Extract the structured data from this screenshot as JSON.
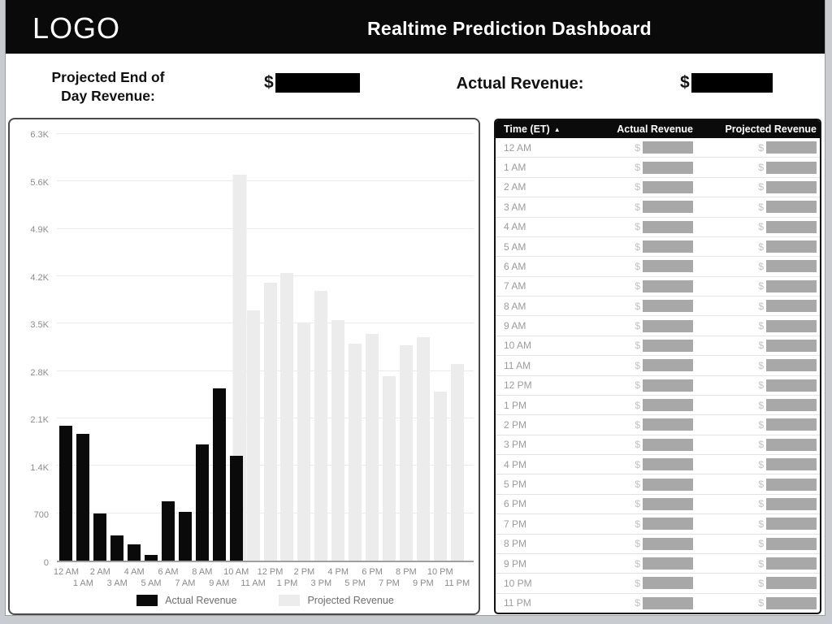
{
  "header": {
    "logo": "LOGO",
    "title": "Realtime Prediction Dashboard"
  },
  "stats": {
    "projected_label_line1": "Projected End of",
    "projected_label_line2": "Day Revenue:",
    "projected_currency": "$",
    "projected_value_redacted": true,
    "actual_label": "Actual Revenue:",
    "actual_currency": "$",
    "actual_value_redacted": true
  },
  "chart_data": {
    "type": "bar",
    "title": "",
    "xlabel": "",
    "ylabel": "",
    "ylim": [
      0,
      6300
    ],
    "grid": true,
    "legend_position": "bottom",
    "x": [
      "12 AM",
      "1 AM",
      "2 AM",
      "3 AM",
      "4 AM",
      "5 AM",
      "6 AM",
      "7 AM",
      "8 AM",
      "9 AM",
      "10 AM",
      "11 AM",
      "12 PM",
      "1 PM",
      "2 PM",
      "3 PM",
      "4 PM",
      "5 PM",
      "6 PM",
      "7 PM",
      "8 PM",
      "9 PM",
      "10 PM",
      "11 PM"
    ],
    "yticks": [
      {
        "v": 0,
        "label": "0"
      },
      {
        "v": 700,
        "label": "700"
      },
      {
        "v": 1400,
        "label": "1.4K"
      },
      {
        "v": 2100,
        "label": "2.1K"
      },
      {
        "v": 2800,
        "label": "2.8K"
      },
      {
        "v": 3500,
        "label": "3.5K"
      },
      {
        "v": 4200,
        "label": "4.2K"
      },
      {
        "v": 4900,
        "label": "4.9K"
      },
      {
        "v": 5600,
        "label": "5.6K"
      },
      {
        "v": 6300,
        "label": "6.3K"
      }
    ],
    "series": [
      {
        "name": "Actual Revenue",
        "color": "#0a0a0a",
        "values": [
          1990,
          1870,
          700,
          370,
          245,
          80,
          880,
          720,
          1720,
          2540,
          1550,
          null,
          null,
          null,
          null,
          null,
          null,
          null,
          null,
          null,
          null,
          null,
          null,
          null
        ]
      },
      {
        "name": "Projected Revenue",
        "color": "#ececec",
        "values": [
          null,
          null,
          null,
          null,
          null,
          null,
          null,
          null,
          null,
          null,
          5700,
          3700,
          4100,
          4250,
          3500,
          3980,
          3550,
          3200,
          3350,
          2730,
          3180,
          3300,
          2500,
          2900
        ]
      }
    ]
  },
  "table": {
    "columns": [
      "Time (ET)",
      "Actual Revenue",
      "Projected Revenue"
    ],
    "sort_icon": "▲",
    "currency": "$",
    "rows": [
      {
        "time": "12 AM",
        "actual_redacted": true,
        "projected_redacted": true
      },
      {
        "time": "1 AM",
        "actual_redacted": true,
        "projected_redacted": true
      },
      {
        "time": "2 AM",
        "actual_redacted": true,
        "projected_redacted": true
      },
      {
        "time": "3 AM",
        "actual_redacted": true,
        "projected_redacted": true
      },
      {
        "time": "4 AM",
        "actual_redacted": true,
        "projected_redacted": true
      },
      {
        "time": "5 AM",
        "actual_redacted": true,
        "projected_redacted": true
      },
      {
        "time": "6 AM",
        "actual_redacted": true,
        "projected_redacted": true
      },
      {
        "time": "7 AM",
        "actual_redacted": true,
        "projected_redacted": true
      },
      {
        "time": "8 AM",
        "actual_redacted": true,
        "projected_redacted": true
      },
      {
        "time": "9 AM",
        "actual_redacted": true,
        "projected_redacted": true
      },
      {
        "time": "10 AM",
        "actual_redacted": true,
        "projected_redacted": true
      },
      {
        "time": "11 AM",
        "actual_redacted": true,
        "projected_redacted": true
      },
      {
        "time": "12 PM",
        "actual_redacted": true,
        "projected_redacted": true
      },
      {
        "time": "1 PM",
        "actual_redacted": true,
        "projected_redacted": true
      },
      {
        "time": "2 PM",
        "actual_redacted": true,
        "projected_redacted": true
      },
      {
        "time": "3 PM",
        "actual_redacted": true,
        "projected_redacted": true
      },
      {
        "time": "4 PM",
        "actual_redacted": true,
        "projected_redacted": true
      },
      {
        "time": "5 PM",
        "actual_redacted": true,
        "projected_redacted": true
      },
      {
        "time": "6 PM",
        "actual_redacted": true,
        "projected_redacted": true
      },
      {
        "time": "7 PM",
        "actual_redacted": true,
        "projected_redacted": true
      },
      {
        "time": "8 PM",
        "actual_redacted": true,
        "projected_redacted": true
      },
      {
        "time": "9 PM",
        "actual_redacted": true,
        "projected_redacted": true
      },
      {
        "time": "10 PM",
        "actual_redacted": true,
        "projected_redacted": true
      },
      {
        "time": "11 PM",
        "actual_redacted": true,
        "projected_redacted": true
      }
    ]
  },
  "colors": {
    "header_bg": "#0a0a0a",
    "actual_bar": "#0a0a0a",
    "projected_bar": "#ececec",
    "redaction_dark": "#000000",
    "redaction_gray": "#a8a8a8",
    "frame_gray": "#c8ccd0"
  }
}
